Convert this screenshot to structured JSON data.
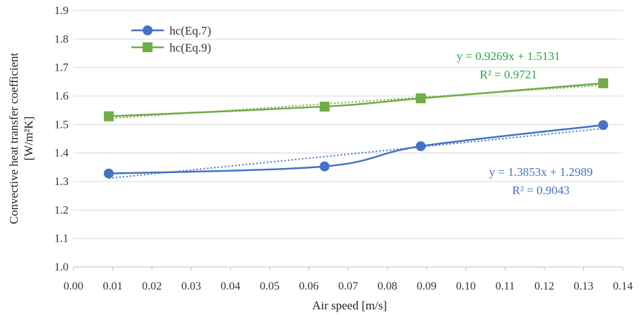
{
  "chart_data": {
    "type": "line",
    "xlabel": "Air speed [m/s]",
    "ylabel_line1": "Convective heat transfer coefficient",
    "ylabel_line2": "[W/m²K]",
    "xlim": [
      0.0,
      0.14
    ],
    "ylim": [
      1.0,
      1.9
    ],
    "x_ticks": [
      "0.00",
      "0.01",
      "0.02",
      "0.03",
      "0.04",
      "0.05",
      "0.06",
      "0.07",
      "0.08",
      "0.09",
      "0.10",
      "0.11",
      "0.12",
      "0.13",
      "0.14"
    ],
    "y_ticks": [
      "1.0",
      "1.1",
      "1.2",
      "1.3",
      "1.4",
      "1.5",
      "1.6",
      "1.7",
      "1.8",
      "1.9"
    ],
    "grid": "horizontal",
    "legend_position": "top-left",
    "series": [
      {
        "name": "hc(Eq.7)",
        "color": "#4472C4",
        "marker": "circle",
        "smooth": true,
        "x": [
          0.009,
          0.064,
          0.0885,
          0.135
        ],
        "y": [
          1.328,
          1.353,
          1.424,
          1.498
        ],
        "trendline": {
          "equation": "y = 1.3853x + 1.2989",
          "r2": "R² = 0.9043",
          "slope": 1.3853,
          "intercept": 1.2989
        }
      },
      {
        "name": "hc(Eq.9)",
        "color": "#70AD47",
        "marker": "square",
        "smooth": true,
        "x": [
          0.009,
          0.064,
          0.0885,
          0.135
        ],
        "y": [
          1.529,
          1.563,
          1.592,
          1.645
        ],
        "trendline": {
          "equation": "y = 0.9269x + 1.5131",
          "r2": "R² = 0.9721",
          "slope": 0.9269,
          "intercept": 1.5131
        }
      }
    ]
  }
}
